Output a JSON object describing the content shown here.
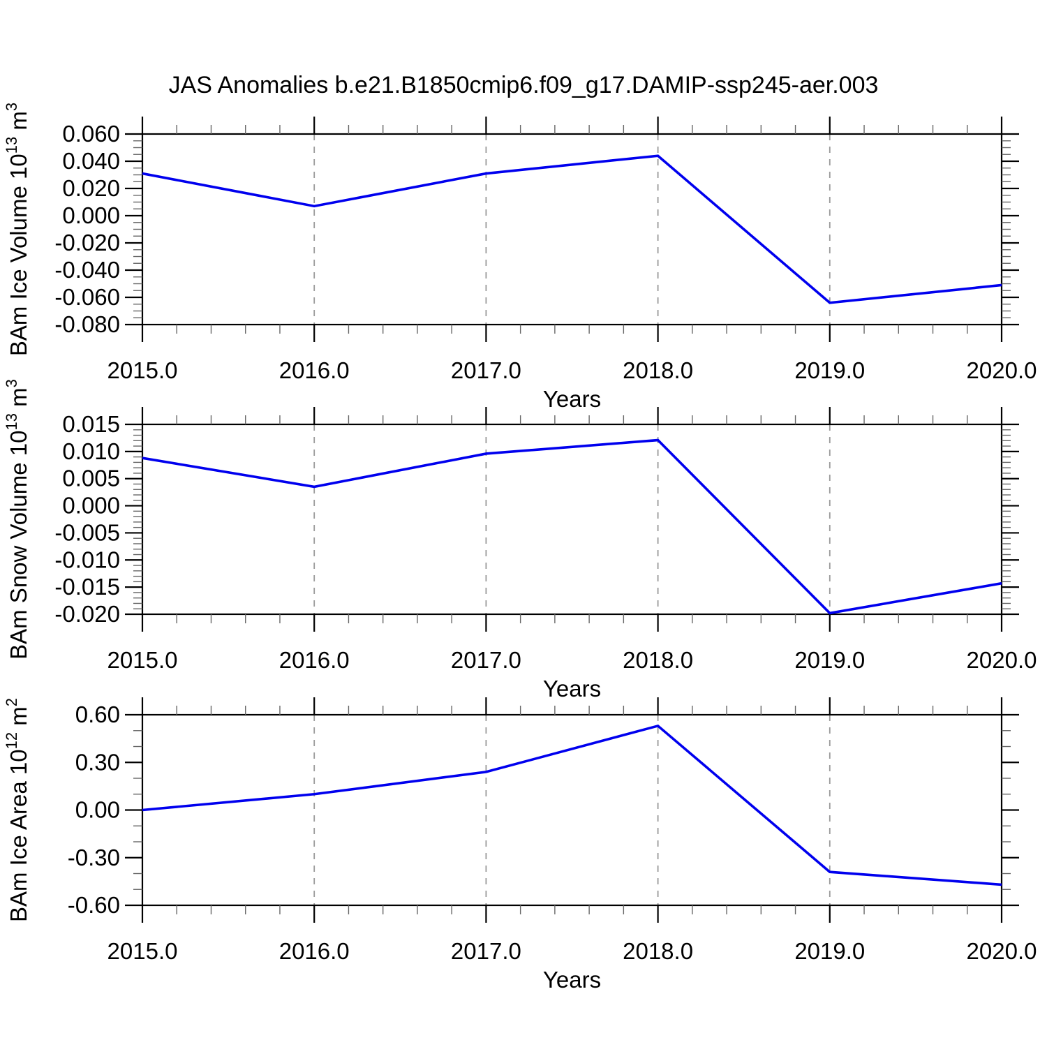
{
  "title": "JAS Anomalies b.e21.B1850cmip6.f09_g17.DAMIP-ssp245-aer.003",
  "chart_data": [
    {
      "type": "line",
      "name": "bam-ice-volume",
      "title": "",
      "xlabel": "Years",
      "ylabel": "BAm Ice Volume 10^13 m^3",
      "x": [
        2015,
        2016,
        2017,
        2018,
        2019,
        2020
      ],
      "y": [
        0.031,
        0.007,
        0.031,
        0.044,
        -0.064,
        -0.051
      ],
      "xlim": [
        2015,
        2020
      ],
      "ylim": [
        -0.08,
        0.06
      ],
      "xticks": [
        2015,
        2016,
        2017,
        2018,
        2019,
        2020
      ],
      "xtick_labels": [
        "2015.0",
        "2016.0",
        "2017.0",
        "2018.0",
        "2019.0",
        "2020.0"
      ],
      "yticks": [
        0.06,
        0.04,
        0.02,
        0.0,
        -0.02,
        -0.04,
        -0.06,
        -0.08
      ],
      "ytick_labels": [
        "0.060",
        "0.040",
        "0.020",
        "0.000",
        "-0.020",
        "-0.040",
        "-0.060",
        "-0.080"
      ],
      "x_minor_step": 0.2,
      "y_minor_step": 0.005,
      "grid_x": [
        2016,
        2017,
        2018,
        2019
      ],
      "grid_on": true,
      "legend": "none",
      "line_color": "#0000ee"
    },
    {
      "type": "line",
      "name": "bam-snow-volume",
      "title": "",
      "xlabel": "Years",
      "ylabel": "BAm Snow Volume 10^13 m^3",
      "x": [
        2015,
        2016,
        2017,
        2018,
        2019,
        2020
      ],
      "y": [
        0.0088,
        0.0035,
        0.0096,
        0.0121,
        -0.0198,
        -0.0143
      ],
      "xlim": [
        2015,
        2020
      ],
      "ylim": [
        -0.02,
        0.015
      ],
      "xticks": [
        2015,
        2016,
        2017,
        2018,
        2019,
        2020
      ],
      "xtick_labels": [
        "2015.0",
        "2016.0",
        "2017.0",
        "2018.0",
        "2019.0",
        "2020.0"
      ],
      "yticks": [
        0.015,
        0.01,
        0.005,
        0.0,
        -0.005,
        -0.01,
        -0.015,
        -0.02
      ],
      "ytick_labels": [
        "0.015",
        "0.010",
        "0.005",
        "0.000",
        "-0.005",
        "-0.010",
        "-0.015",
        "-0.020"
      ],
      "x_minor_step": 0.2,
      "y_minor_step": 0.001,
      "grid_x": [
        2016,
        2017,
        2018,
        2019
      ],
      "grid_on": true,
      "legend": "none",
      "line_color": "#0000ee"
    },
    {
      "type": "line",
      "name": "bam-ice-area",
      "title": "",
      "xlabel": "Years",
      "ylabel": "BAm Ice Area 10^12 m^2",
      "x": [
        2015,
        2016,
        2017,
        2018,
        2019,
        2020
      ],
      "y": [
        0.0,
        0.1,
        0.24,
        0.53,
        -0.39,
        -0.47
      ],
      "xlim": [
        2015,
        2020
      ],
      "ylim": [
        -0.6,
        0.6
      ],
      "xticks": [
        2015,
        2016,
        2017,
        2018,
        2019,
        2020
      ],
      "xtick_labels": [
        "2015.0",
        "2016.0",
        "2017.0",
        "2018.0",
        "2019.0",
        "2020.0"
      ],
      "yticks": [
        0.6,
        0.3,
        0.0,
        -0.3,
        -0.6
      ],
      "ytick_labels": [
        "0.60",
        "0.30",
        "0.00",
        "-0.30",
        "-0.60"
      ],
      "x_minor_step": 0.2,
      "y_minor_step": 0.1,
      "grid_x": [
        2016,
        2017,
        2018,
        2019
      ],
      "grid_on": true,
      "legend": "none",
      "line_color": "#0000ee"
    }
  ]
}
